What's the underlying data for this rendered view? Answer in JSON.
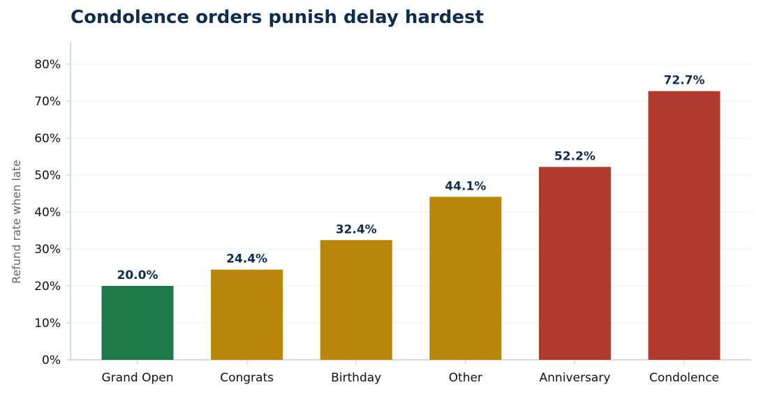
{
  "chart_data": {
    "type": "bar",
    "title": "Condolence orders punish delay hardest",
    "xlabel": "",
    "ylabel": "Refund rate when late",
    "categories": [
      "Grand Open",
      "Congrats",
      "Birthday",
      "Other",
      "Anniversary",
      "Condolence"
    ],
    "values": [
      20.0,
      24.4,
      32.4,
      44.1,
      52.2,
      72.7
    ],
    "value_labels": [
      "20.0%",
      "24.4%",
      "32.4%",
      "44.1%",
      "52.2%",
      "72.7%"
    ],
    "bar_colors": [
      "#1f7a4a",
      "#b8860b",
      "#b8860b",
      "#b8860b",
      "#b03a2e",
      "#b03a2e"
    ],
    "ylim": [
      0,
      86
    ],
    "yticks": [
      0,
      10,
      20,
      30,
      40,
      50,
      60,
      70,
      80
    ],
    "ytick_labels": [
      "0%",
      "10%",
      "20%",
      "30%",
      "40%",
      "50%",
      "60%",
      "70%",
      "80%"
    ],
    "grid": "horizontal",
    "legend": "none"
  },
  "colors": {
    "title": "#0f2d4d",
    "gridline": "#eef1f4",
    "axis": "#c5d0d8"
  }
}
